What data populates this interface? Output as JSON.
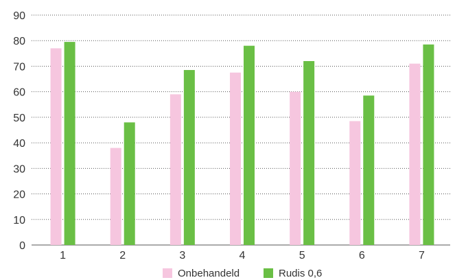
{
  "chart_data": {
    "type": "bar",
    "categories": [
      "1",
      "2",
      "3",
      "4",
      "5",
      "6",
      "7"
    ],
    "series": [
      {
        "name": "Onbehandeld",
        "color": "#f6c6df",
        "values": [
          77,
          38,
          59,
          67.5,
          60,
          48.5,
          71
        ]
      },
      {
        "name": "Rudis 0,6",
        "color": "#6abf45",
        "values": [
          79.5,
          48,
          68.5,
          78,
          72,
          58.5,
          78.5
        ]
      }
    ],
    "ylim": [
      0,
      90
    ],
    "yticks": [
      "0",
      "10",
      "20",
      "30",
      "40",
      "50",
      "60",
      "70",
      "80",
      "90"
    ],
    "grid": true,
    "legend_position": "bottom",
    "legend": [
      "Onbehandeld",
      "Rudis 0,6"
    ]
  }
}
